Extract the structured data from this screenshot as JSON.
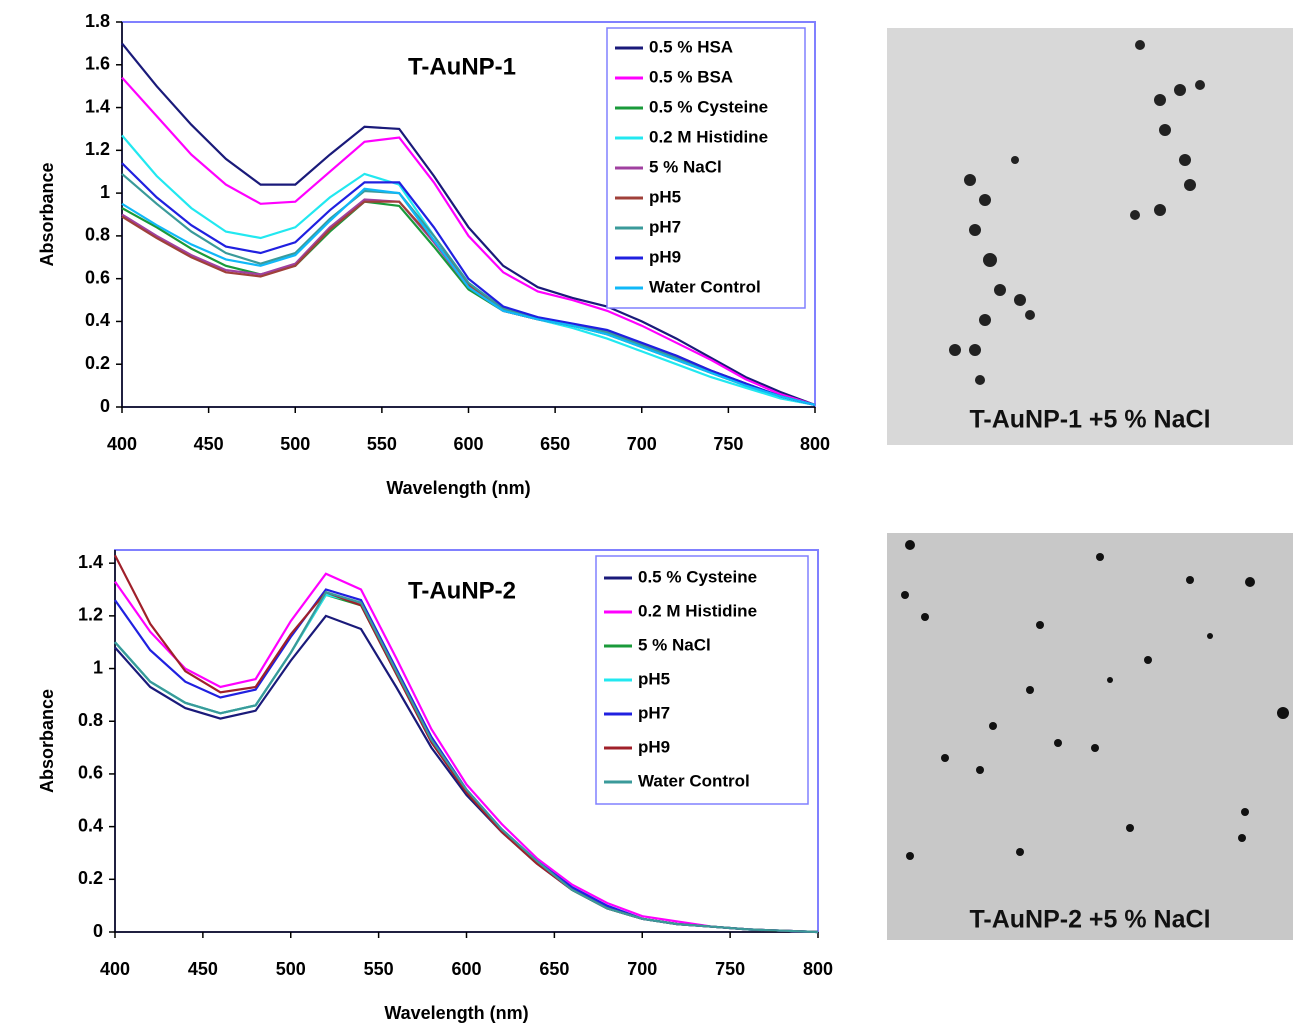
{
  "chart_data": [
    {
      "type": "line",
      "title": "T-AuNP-1",
      "x_label": "Wavelength (nm)",
      "y_label": "Absorbance",
      "x": [
        400,
        420,
        440,
        460,
        480,
        500,
        520,
        540,
        560,
        580,
        600,
        620,
        640,
        660,
        680,
        700,
        720,
        740,
        760,
        780,
        800
      ],
      "xlim": [
        400,
        800
      ],
      "xticks": [
        400,
        450,
        500,
        550,
        600,
        650,
        700,
        750,
        800
      ],
      "ylim": [
        0,
        1.8
      ],
      "yticks": [
        0,
        0.2,
        0.4,
        0.6,
        0.8,
        1,
        1.2,
        1.4,
        1.6,
        1.8
      ],
      "grid": false,
      "legend": "upper right",
      "series": [
        {
          "name": "0.5 % HSA",
          "color": "#1a1a7a",
          "values": [
            1.7,
            1.5,
            1.32,
            1.16,
            1.04,
            1.04,
            1.18,
            1.31,
            1.3,
            1.08,
            0.84,
            0.66,
            0.56,
            0.51,
            0.47,
            0.4,
            0.32,
            0.23,
            0.14,
            0.07,
            0.01
          ]
        },
        {
          "name": "0.5 % BSA",
          "color": "#ff00ff",
          "values": [
            1.54,
            1.36,
            1.18,
            1.04,
            0.95,
            0.96,
            1.1,
            1.24,
            1.26,
            1.05,
            0.8,
            0.63,
            0.54,
            0.5,
            0.45,
            0.38,
            0.3,
            0.22,
            0.13,
            0.06,
            0.01
          ]
        },
        {
          "name": "0.5 % Cysteine",
          "color": "#1a9a3a",
          "values": [
            0.93,
            0.84,
            0.74,
            0.66,
            0.62,
            0.66,
            0.82,
            0.96,
            0.94,
            0.75,
            0.55,
            0.45,
            0.41,
            0.38,
            0.34,
            0.28,
            0.22,
            0.16,
            0.1,
            0.05,
            0.01
          ]
        },
        {
          "name": "0.2 M Histidine",
          "color": "#22e8f0",
          "values": [
            1.27,
            1.08,
            0.93,
            0.82,
            0.79,
            0.84,
            0.98,
            1.09,
            1.04,
            0.8,
            0.58,
            0.46,
            0.41,
            0.37,
            0.32,
            0.26,
            0.2,
            0.14,
            0.09,
            0.04,
            0.01
          ]
        },
        {
          "name": "5 % NaCl",
          "color": "#a040a0",
          "values": [
            0.9,
            0.8,
            0.71,
            0.64,
            0.62,
            0.67,
            0.84,
            0.97,
            0.96,
            0.77,
            0.56,
            0.45,
            0.41,
            0.38,
            0.35,
            0.29,
            0.23,
            0.17,
            0.11,
            0.05,
            0.01
          ]
        },
        {
          "name": "pH5",
          "color": "#a0403a",
          "values": [
            0.89,
            0.79,
            0.7,
            0.63,
            0.61,
            0.66,
            0.83,
            0.96,
            0.96,
            0.78,
            0.57,
            0.45,
            0.41,
            0.38,
            0.35,
            0.29,
            0.24,
            0.17,
            0.11,
            0.05,
            0.01
          ]
        },
        {
          "name": "pH7",
          "color": "#3a9a9a",
          "values": [
            1.09,
            0.95,
            0.82,
            0.72,
            0.67,
            0.72,
            0.88,
            1.01,
            1.0,
            0.8,
            0.58,
            0.46,
            0.41,
            0.38,
            0.35,
            0.29,
            0.23,
            0.17,
            0.11,
            0.05,
            0.01
          ]
        },
        {
          "name": "pH9",
          "color": "#2020e0",
          "values": [
            1.14,
            0.98,
            0.85,
            0.75,
            0.72,
            0.77,
            0.92,
            1.05,
            1.05,
            0.84,
            0.6,
            0.47,
            0.42,
            0.39,
            0.36,
            0.3,
            0.24,
            0.17,
            0.11,
            0.05,
            0.01
          ]
        },
        {
          "name": "Water Control",
          "color": "#10b8f8",
          "values": [
            0.95,
            0.85,
            0.76,
            0.69,
            0.66,
            0.71,
            0.87,
            1.02,
            1.0,
            0.78,
            0.56,
            0.45,
            0.41,
            0.38,
            0.34,
            0.28,
            0.22,
            0.16,
            0.1,
            0.05,
            0.01
          ]
        }
      ]
    },
    {
      "type": "line",
      "title": "T-AuNP-2",
      "x_label": "Wavelength (nm)",
      "y_label": "Absorbance",
      "x": [
        400,
        420,
        440,
        460,
        480,
        500,
        520,
        540,
        560,
        580,
        600,
        620,
        640,
        660,
        680,
        700,
        720,
        740,
        760,
        780,
        800
      ],
      "xlim": [
        400,
        800
      ],
      "xticks": [
        400,
        450,
        500,
        550,
        600,
        650,
        700,
        750,
        800
      ],
      "ylim": [
        0,
        1.45
      ],
      "yticks": [
        0,
        0.2,
        0.4,
        0.6,
        0.8,
        1,
        1.2,
        1.4
      ],
      "grid": false,
      "legend": "upper right",
      "series": [
        {
          "name": "0.5 % Cysteine",
          "color": "#1a1a7a",
          "values": [
            1.08,
            0.93,
            0.85,
            0.81,
            0.84,
            1.03,
            1.2,
            1.15,
            0.93,
            0.7,
            0.52,
            0.38,
            0.26,
            0.16,
            0.09,
            0.05,
            0.03,
            0.02,
            0.01,
            0.005,
            0
          ]
        },
        {
          "name": "0.2 M Histidine",
          "color": "#ff00ff",
          "values": [
            1.33,
            1.14,
            1.0,
            0.93,
            0.96,
            1.18,
            1.36,
            1.3,
            1.04,
            0.77,
            0.56,
            0.41,
            0.28,
            0.18,
            0.11,
            0.06,
            0.04,
            0.02,
            0.01,
            0.005,
            0
          ]
        },
        {
          "name": "5 % NaCl",
          "color": "#1a9a3a",
          "values": [
            1.1,
            0.95,
            0.87,
            0.83,
            0.86,
            1.06,
            1.28,
            1.24,
            0.98,
            0.73,
            0.54,
            0.39,
            0.27,
            0.16,
            0.09,
            0.05,
            0.03,
            0.02,
            0.01,
            0.005,
            0
          ]
        },
        {
          "name": "pH5",
          "color": "#22e8f0",
          "values": [
            1.1,
            0.95,
            0.87,
            0.83,
            0.86,
            1.06,
            1.28,
            1.25,
            0.99,
            0.74,
            0.54,
            0.39,
            0.27,
            0.17,
            0.1,
            0.05,
            0.03,
            0.02,
            0.01,
            0.005,
            0
          ]
        },
        {
          "name": "pH7",
          "color": "#2020e0",
          "values": [
            1.26,
            1.07,
            0.95,
            0.89,
            0.92,
            1.12,
            1.3,
            1.26,
            1.0,
            0.74,
            0.54,
            0.39,
            0.27,
            0.17,
            0.1,
            0.05,
            0.03,
            0.02,
            0.01,
            0.005,
            0
          ]
        },
        {
          "name": "pH9",
          "color": "#a0202a",
          "values": [
            1.43,
            1.17,
            0.99,
            0.91,
            0.93,
            1.13,
            1.29,
            1.24,
            0.98,
            0.72,
            0.53,
            0.38,
            0.26,
            0.16,
            0.09,
            0.05,
            0.03,
            0.02,
            0.01,
            0.005,
            0
          ]
        },
        {
          "name": "Water Control",
          "color": "#3a9a9a",
          "values": [
            1.1,
            0.95,
            0.87,
            0.83,
            0.86,
            1.06,
            1.29,
            1.25,
            0.99,
            0.73,
            0.54,
            0.39,
            0.27,
            0.16,
            0.09,
            0.05,
            0.03,
            0.02,
            0.01,
            0.005,
            0
          ]
        }
      ]
    }
  ],
  "images": [
    {
      "caption": "T-AuNP-1 +5 % NaCl"
    },
    {
      "caption": "T-AuNP-2 +5 % NaCl"
    }
  ]
}
